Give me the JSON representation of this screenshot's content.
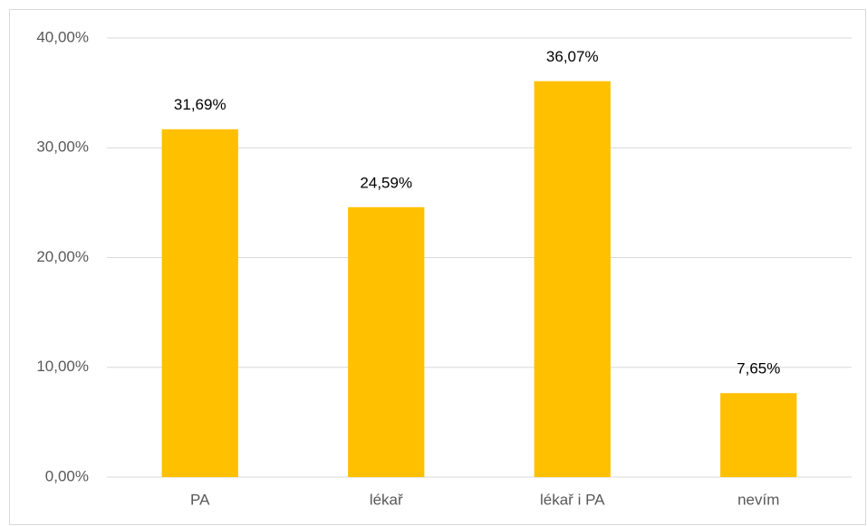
{
  "chart_data": {
    "type": "bar",
    "categories": [
      "PA",
      "lékař",
      "lékař i PA",
      "nevím"
    ],
    "values": [
      31.69,
      24.59,
      36.07,
      7.65
    ],
    "value_labels": [
      "31,69%",
      "24,59%",
      "36,07%",
      "7,65%"
    ],
    "color": "#ffc000",
    "ylim": [
      0,
      40
    ],
    "yticks": [
      {
        "value": 0,
        "label": "0,00%"
      },
      {
        "value": 10,
        "label": "10,00%"
      },
      {
        "value": 20,
        "label": "20,00%"
      },
      {
        "value": 30,
        "label": "30,00%"
      },
      {
        "value": 40,
        "label": "40,00%"
      }
    ],
    "grid": true
  }
}
